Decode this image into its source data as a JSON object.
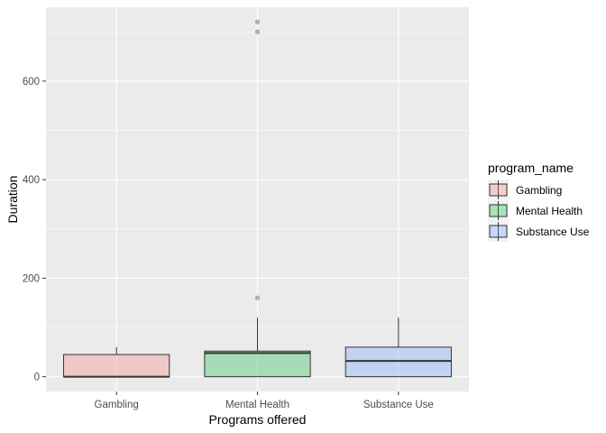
{
  "chart_data": {
    "type": "boxplot",
    "xlabel": "Programs offered",
    "ylabel": "Duration",
    "categories": [
      "Gambling",
      "Mental Health",
      "Substance Use"
    ],
    "ylim": [
      -30,
      750
    ],
    "yticks": [
      0,
      200,
      400,
      600
    ],
    "grid": true,
    "legend": {
      "title": "program_name",
      "placement": "right",
      "entries": [
        "Gambling",
        "Mental Health",
        "Substance Use"
      ]
    },
    "colors": [
      "#F8766D",
      "#00BA38",
      "#619CFF"
    ],
    "boxes": [
      {
        "category": "Gambling",
        "q1": 0,
        "median": 0,
        "q3": 45,
        "whisker_low": 0,
        "whisker_high": 60,
        "outliers": []
      },
      {
        "category": "Mental Health",
        "q1": 0,
        "median": 48,
        "q3": 52,
        "whisker_low": 0,
        "whisker_high": 120,
        "outliers": [
          160,
          700,
          720
        ]
      },
      {
        "category": "Substance Use",
        "q1": 0,
        "median": 32,
        "q3": 60,
        "whisker_low": 0,
        "whisker_high": 120,
        "outliers": []
      }
    ]
  }
}
